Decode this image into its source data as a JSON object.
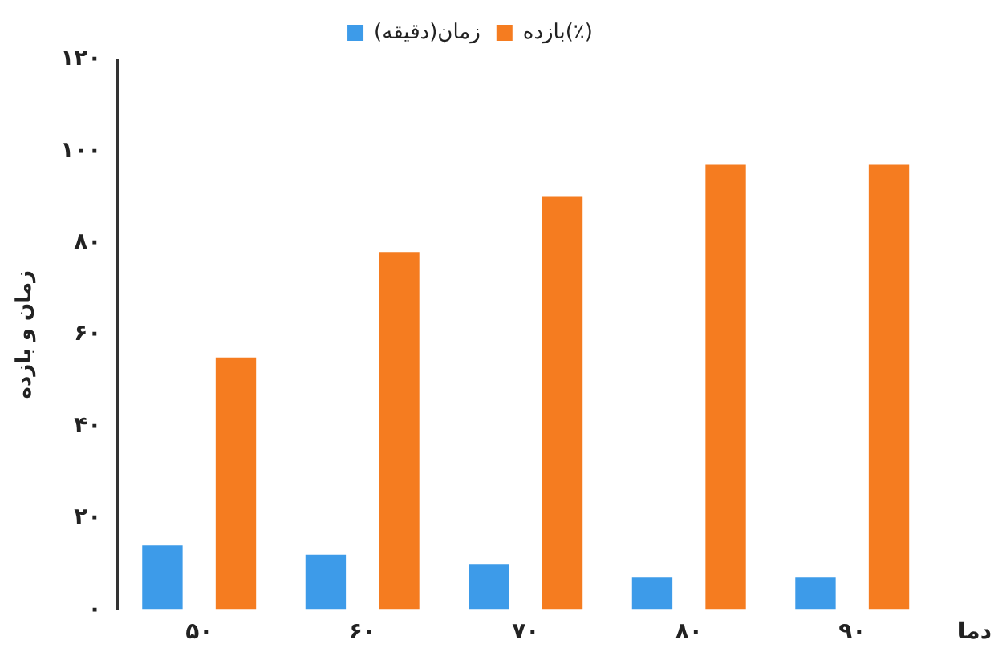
{
  "chart_data": {
    "type": "bar",
    "xlabel": "دما",
    "ylabel": "زمان و بازده",
    "categories": [
      "۵۰",
      "۶۰",
      "۷۰",
      "۸۰",
      "۹۰"
    ],
    "series": [
      {
        "name": "زمان(دقیقه)",
        "color": "#3d9be9",
        "values": [
          14,
          12,
          10,
          7,
          7
        ]
      },
      {
        "name": "بازده(٪)",
        "color": "#f57c20",
        "values": [
          55,
          78,
          90,
          97,
          97
        ]
      }
    ],
    "ylim": [
      0,
      120
    ],
    "yticks": [
      {
        "value": 0,
        "label": "۰"
      },
      {
        "value": 20,
        "label": "۲۰"
      },
      {
        "value": 40,
        "label": "۴۰"
      },
      {
        "value": 60,
        "label": "۶۰"
      },
      {
        "value": 80,
        "label": "۸۰"
      },
      {
        "value": 100,
        "label": "۱۰۰"
      },
      {
        "value": 120,
        "label": "۱۲۰"
      }
    ],
    "grid": false,
    "legend": "top"
  }
}
